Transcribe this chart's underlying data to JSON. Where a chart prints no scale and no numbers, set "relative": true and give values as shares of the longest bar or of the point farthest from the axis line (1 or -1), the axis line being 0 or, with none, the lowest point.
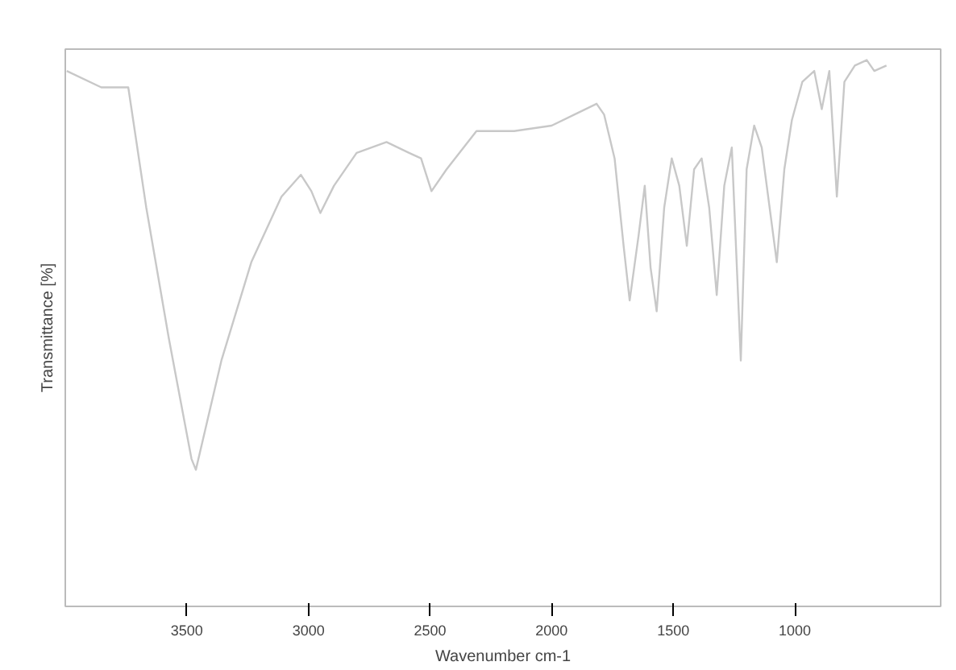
{
  "chart_data": {
    "type": "line",
    "relative": true,
    "xlabel": "Wavenumber cm-1",
    "ylabel": "Transmittance [%]",
    "x": [
      3994,
      3852,
      3741,
      3667,
      3574,
      3481,
      3463,
      3358,
      3235,
      3111,
      3031,
      2988,
      2951,
      2895,
      2802,
      2679,
      2586,
      2537,
      2494,
      2432,
      2309,
      2154,
      2000,
      1907,
      1815,
      1784,
      1741,
      1704,
      1679,
      1642,
      1617,
      1593,
      1568,
      1537,
      1506,
      1475,
      1444,
      1414,
      1383,
      1352,
      1321,
      1290,
      1259,
      1222,
      1198,
      1167,
      1136,
      1074,
      1043,
      1012,
      969,
      920,
      889,
      858,
      827,
      796,
      753,
      704,
      673,
      623
    ],
    "series": [
      {
        "color": "#c8c8c8",
        "values": [
          0.98,
          0.95,
          0.95,
          0.73,
          0.49,
          0.27,
          0.25,
          0.45,
          0.63,
          0.75,
          0.79,
          0.76,
          0.72,
          0.77,
          0.83,
          0.85,
          0.83,
          0.82,
          0.76,
          0.8,
          0.87,
          0.87,
          0.88,
          0.9,
          0.92,
          0.9,
          0.82,
          0.66,
          0.56,
          0.68,
          0.77,
          0.62,
          0.54,
          0.73,
          0.82,
          0.77,
          0.66,
          0.8,
          0.82,
          0.73,
          0.57,
          0.77,
          0.84,
          0.45,
          0.8,
          0.88,
          0.84,
          0.63,
          0.8,
          0.89,
          0.96,
          0.98,
          0.91,
          0.98,
          0.75,
          0.96,
          0.99,
          1.0,
          0.98,
          0.99
        ]
      }
    ],
    "xlim": [
      4000,
      400
    ],
    "xticks": [
      3500,
      3000,
      2500,
      2000,
      1500,
      1000
    ],
    "grid": false,
    "line_style": "solid",
    "marker": "none"
  }
}
